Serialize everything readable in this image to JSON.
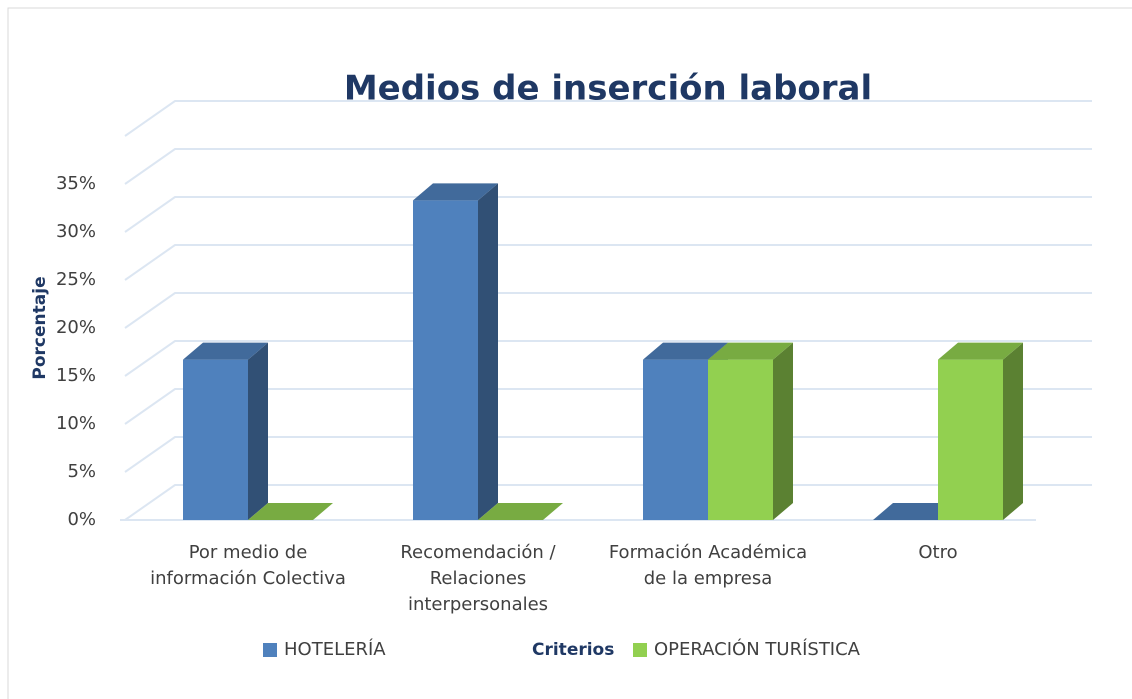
{
  "chart_data": {
    "type": "bar3d",
    "title": "Medios de inserción laboral",
    "y_label": "Porcentaje",
    "legend_title": "Criterios",
    "legend": "bottom",
    "grid": true,
    "categories": [
      "Por medio de información Colectiva",
      "Recomendación / Relaciones interpersonales",
      "Formación Académica de la empresa",
      "Otro"
    ],
    "series": [
      {
        "name": "HOTELERÍA",
        "color": "#4f81bd",
        "values": [
          16.7,
          33.3,
          16.7,
          0
        ]
      },
      {
        "name": "OPERACIÓN TURÍSTICA",
        "color": "#92d050",
        "values": [
          0,
          0,
          16.7,
          16.7
        ]
      }
    ],
    "ylim": [
      0,
      40
    ],
    "yticks": [
      {
        "value": 0,
        "label": "0%"
      },
      {
        "value": 5,
        "label": "5%"
      },
      {
        "value": 10,
        "label": "10%"
      },
      {
        "value": 15,
        "label": "15%"
      },
      {
        "value": 20,
        "label": "20%"
      },
      {
        "value": 25,
        "label": "25%"
      },
      {
        "value": 30,
        "label": "30%"
      },
      {
        "value": 35,
        "label": "35%"
      }
    ]
  }
}
